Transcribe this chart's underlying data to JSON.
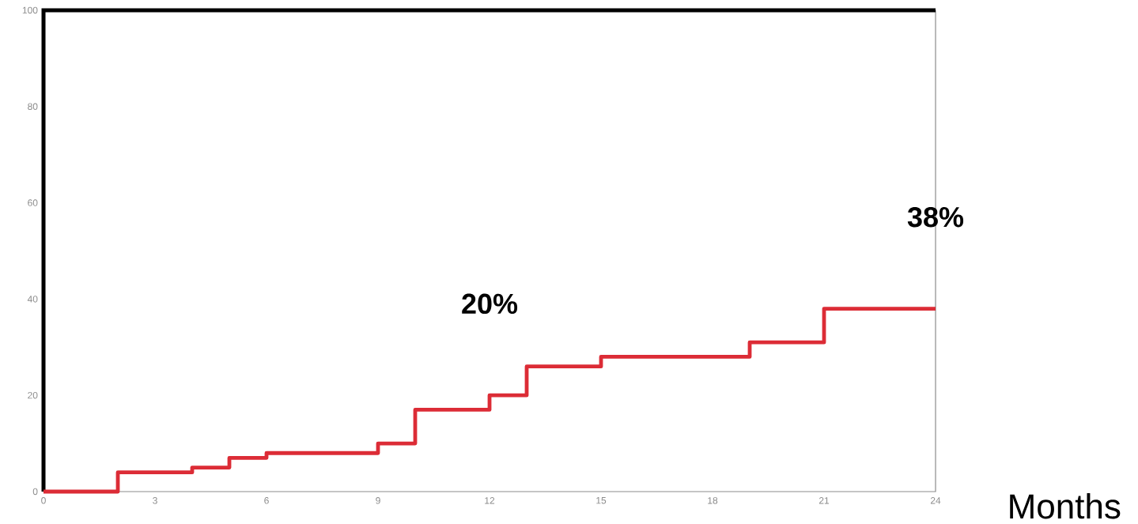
{
  "chart_data": {
    "type": "step",
    "xlabel": "Months",
    "x": [
      0,
      2,
      4,
      5,
      6,
      9,
      10,
      12,
      13,
      15,
      19,
      21,
      24
    ],
    "values": [
      0,
      4,
      5,
      7,
      8,
      10,
      17,
      20,
      26,
      28,
      31,
      38,
      38
    ],
    "color": "#dc2c36",
    "xlim": [
      0,
      24
    ],
    "xticks": [
      0,
      3,
      6,
      9,
      12,
      15,
      18,
      21,
      24
    ],
    "ylim": [
      0,
      100
    ],
    "yticks": [
      0,
      20,
      40,
      60,
      80,
      100
    ],
    "grid": false,
    "marker": "none",
    "line_style": "solid",
    "annotations": [
      {
        "text": "20%",
        "x": 12,
        "y": 20
      },
      {
        "text": "38%",
        "x": 24,
        "y": 38
      }
    ]
  }
}
